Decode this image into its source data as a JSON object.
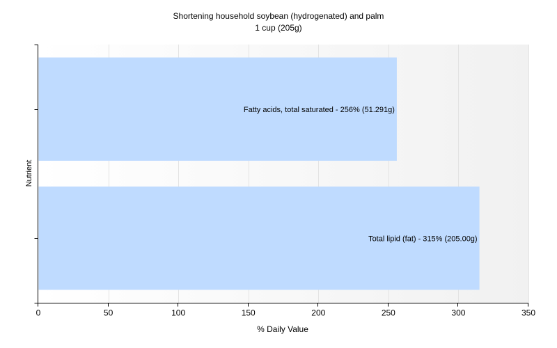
{
  "chart_data": {
    "type": "bar",
    "orientation": "horizontal",
    "title": "Shortening household soybean (hydrogenated) and palm",
    "subtitle": "1 cup (205g)",
    "xlabel": "% Daily Value",
    "ylabel": "Nutrient",
    "xlim": [
      0,
      350
    ],
    "xticks": [
      0,
      50,
      100,
      150,
      200,
      250,
      300,
      350
    ],
    "grid": true,
    "categories": [
      "Fatty acids, total saturated",
      "Total lipid (fat)"
    ],
    "values": [
      256,
      315
    ],
    "data_labels": [
      "Fatty acids, total saturated - 256% (51.291g)",
      "Total lipid (fat) - 315% (205.00g)"
    ],
    "bar_color": "#bfdbff",
    "grid_color": "#e3e3e3",
    "axis_color": "#000000"
  }
}
